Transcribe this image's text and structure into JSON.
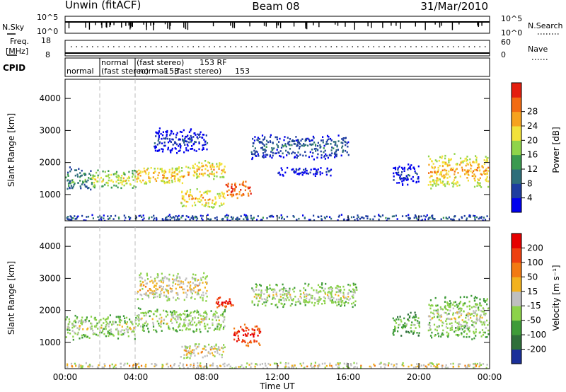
{
  "header": {
    "station": "Unwin (fitACF)",
    "beam": "Beam 08",
    "date": "31/Mar/2010"
  },
  "top_panels": {
    "nsky": {
      "left_label": "N.Sky",
      "ticks_left": [
        "10^5",
        "10^0"
      ],
      "ticks_right": [
        "10^5",
        "10^0"
      ],
      "right_label": "N.Search"
    },
    "freq": {
      "left_label_line1": "Freq.",
      "left_label_line2": "[MHz]",
      "ticks_left": [
        "18",
        "8"
      ],
      "ticks_right": [
        "60",
        "0"
      ],
      "right_label": "Nave"
    },
    "cpid": {
      "label": "CPID",
      "segments": [
        {
          "line1": "normal",
          "line2": ""
        },
        {
          "line1": "normal",
          "line2": "(fast stereo)"
        },
        {
          "line1": "(fast stereo)",
          "line2": "normal"
        },
        {
          "line1": "153 RF",
          "line2": "153"
        },
        {
          "line1": "",
          "line2": "(fast stereo)"
        },
        {
          "line1": "",
          "line2": "153"
        }
      ]
    }
  },
  "colors": {
    "power_scale": [
      "#0000ee",
      "#1e3da0",
      "#2e6e7a",
      "#3a9a4f",
      "#8fd44a",
      "#f2e23a",
      "#f6a21e",
      "#f26b12",
      "#e41e0e"
    ],
    "velocity_scale": [
      "#1a2f99",
      "#2f6f3a",
      "#3e9b38",
      "#8cd24a",
      "#bfbfbf",
      "#f2b21e",
      "#f27a12",
      "#ee4010",
      "#e60000"
    ],
    "grid": "#bbbbbb"
  },
  "chart_data": [
    {
      "type": "heatmap",
      "name": "Power",
      "ylabel": "Slant Range [km]",
      "xlabel": "Time UT",
      "x_ticks": [
        "00:00",
        "04:00",
        "08:00",
        "12:00",
        "16:00",
        "20:00",
        "00:00"
      ],
      "x_range_hours": [
        0,
        24
      ],
      "y_ticks": [
        1000,
        2000,
        3000,
        4000
      ],
      "y_range_km": [
        180,
        4600
      ],
      "colorbar": {
        "label": "Power [dB]",
        "ticks": [
          4,
          8,
          12,
          16,
          20,
          24,
          28
        ]
      },
      "bands": [
        {
          "t0": 0.0,
          "t1": 1.5,
          "r0": 1100,
          "r1": 1900,
          "c": 3
        },
        {
          "t0": 1.5,
          "t1": 4.0,
          "r0": 1200,
          "r1": 1800,
          "c": 5
        },
        {
          "t0": 4.0,
          "t1": 7.0,
          "r0": 1300,
          "r1": 1950,
          "c": 6
        },
        {
          "t0": 7.0,
          "t1": 9.0,
          "r0": 1500,
          "r1": 2100,
          "c": 6
        },
        {
          "t0": 9.0,
          "t1": 10.5,
          "r0": 900,
          "r1": 1500,
          "c": 8
        },
        {
          "t0": 6.5,
          "t1": 9.0,
          "r0": 600,
          "r1": 1200,
          "c": 6
        },
        {
          "t0": 5.0,
          "t1": 8.0,
          "r0": 2300,
          "r1": 3100,
          "c": 1
        },
        {
          "t0": 10.5,
          "t1": 16.0,
          "r0": 2100,
          "r1": 2900,
          "c": 2
        },
        {
          "t0": 12.0,
          "t1": 15.0,
          "r0": 1600,
          "r1": 1900,
          "c": 1
        },
        {
          "t0": 18.5,
          "t1": 20.0,
          "r0": 1300,
          "r1": 2000,
          "c": 1
        },
        {
          "t0": 20.5,
          "t1": 24.0,
          "r0": 1200,
          "r1": 2300,
          "c": 6
        },
        {
          "t0": 0.0,
          "t1": 24.0,
          "r0": 200,
          "r1": 400,
          "c": 2
        }
      ]
    },
    {
      "type": "heatmap",
      "name": "Velocity",
      "ylabel": "Slant Range [km]",
      "xlabel": "Time UT",
      "x_ticks": [
        "00:00",
        "04:00",
        "08:00",
        "12:00",
        "16:00",
        "20:00",
        "00:00"
      ],
      "x_range_hours": [
        0,
        24
      ],
      "y_ticks": [
        1000,
        2000,
        3000,
        4000
      ],
      "y_range_km": [
        180,
        4600
      ],
      "colorbar": {
        "label": "Velocity [m s⁻¹]",
        "ticks": [
          200,
          100,
          50,
          15,
          -15,
          -50,
          -100,
          -200
        ]
      },
      "bands": [
        {
          "t0": 0.0,
          "t1": 4.0,
          "r0": 1100,
          "r1": 1900,
          "c": 4
        },
        {
          "t0": 4.0,
          "t1": 9.0,
          "r0": 1300,
          "r1": 2100,
          "c": 4
        },
        {
          "t0": 9.5,
          "t1": 11.0,
          "r0": 900,
          "r1": 1600,
          "c": 8
        },
        {
          "t0": 8.5,
          "t1": 9.5,
          "r0": 2100,
          "r1": 2500,
          "c": 8
        },
        {
          "t0": 6.5,
          "t1": 9.0,
          "r0": 500,
          "r1": 1000,
          "c": 5
        },
        {
          "t0": 4.0,
          "t1": 8.0,
          "r0": 2300,
          "r1": 3200,
          "c": 5
        },
        {
          "t0": 10.5,
          "t1": 16.5,
          "r0": 2100,
          "r1": 2900,
          "c": 4
        },
        {
          "t0": 18.5,
          "t1": 20.0,
          "r0": 1200,
          "r1": 2000,
          "c": 3
        },
        {
          "t0": 20.5,
          "t1": 24.0,
          "r0": 1100,
          "r1": 2500,
          "c": 4
        },
        {
          "t0": 0.0,
          "t1": 24.0,
          "r0": 200,
          "r1": 400,
          "c": 5
        }
      ]
    }
  ]
}
